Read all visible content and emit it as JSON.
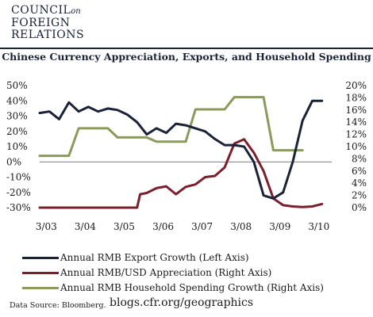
{
  "header": {
    "logo_line1": "COUNCIL",
    "logo_on": "on",
    "logo_line2": "FOREIGN",
    "logo_line3": "RELATIONS"
  },
  "footer": {
    "source": "Data Source: Bloomberg.",
    "site": "blogs.cfr.org/geographics"
  },
  "chart_data": {
    "type": "line",
    "title": "Chinese Currency Appreciation, Exports, and Household Spending",
    "left_axis": {
      "ylim": [
        -30,
        50
      ],
      "ticks": [
        "50%",
        "40%",
        "30%",
        "20%",
        "10%",
        "0%",
        "-10%",
        "-20%",
        "-30%"
      ],
      "values": [
        50,
        40,
        30,
        20,
        10,
        0,
        -10,
        -20,
        -30
      ]
    },
    "right_axis": {
      "ylim": [
        0,
        20
      ],
      "ticks": [
        "20%",
        "18%",
        "16%",
        "14%",
        "12%",
        "10%",
        "8%",
        "6%",
        "4%",
        "2%",
        "0%"
      ],
      "values": [
        20,
        18,
        16,
        14,
        12,
        10,
        8,
        6,
        4,
        2,
        0
      ]
    },
    "x_ticks": [
      {
        "label": "3/03",
        "t": 2003.17
      },
      {
        "label": "3/04",
        "t": 2004.17
      },
      {
        "label": "3/05",
        "t": 2005.17
      },
      {
        "label": "3/06",
        "t": 2006.17
      },
      {
        "label": "3/07",
        "t": 2007.17
      },
      {
        "label": "3/08",
        "t": 2008.17
      },
      {
        "label": "3/09",
        "t": 2009.17
      },
      {
        "label": "3/10",
        "t": 2010.17
      }
    ],
    "xlim": [
      2003.0,
      2010.5
    ],
    "grid": false,
    "zero_line": true,
    "legend_placement": "bottom",
    "series": [
      {
        "name": "Annual RMB Export Growth (Left Axis)",
        "axis": "left",
        "color": "#1a2238",
        "x": [
          2003.0,
          2003.25,
          2003.5,
          2003.75,
          2004.0,
          2004.25,
          2004.5,
          2004.75,
          2005.0,
          2005.25,
          2005.5,
          2005.75,
          2006.0,
          2006.25,
          2006.5,
          2006.75,
          2007.0,
          2007.25,
          2007.5,
          2007.75,
          2008.0,
          2008.25,
          2008.5,
          2008.75,
          2009.0,
          2009.25,
          2009.5,
          2009.75,
          2010.0,
          2010.25
        ],
        "values": [
          32,
          33,
          28,
          39,
          33,
          36,
          33,
          35,
          34,
          31,
          26,
          18,
          22,
          19,
          25,
          24,
          22,
          20,
          15,
          11,
          11,
          10,
          0,
          -22,
          -24,
          -20,
          0,
          27,
          40,
          40
        ]
      },
      {
        "name": "Annual RMB/USD Appreciation (Right Axis)",
        "axis": "right",
        "color": "#7a1f2b",
        "x": [
          2003.0,
          2003.5,
          2004.0,
          2004.5,
          2005.0,
          2005.5,
          2005.58,
          2005.75,
          2006.0,
          2006.25,
          2006.5,
          2006.75,
          2007.0,
          2007.25,
          2007.5,
          2007.75,
          2008.0,
          2008.25,
          2008.5,
          2008.75,
          2009.0,
          2009.25,
          2009.5,
          2009.75,
          2010.0,
          2010.25
        ],
        "values": [
          0,
          0,
          0,
          0,
          0,
          0,
          2.2,
          2.4,
          3.2,
          3.5,
          2.2,
          3.4,
          3.8,
          5.0,
          5.2,
          6.6,
          10.5,
          11.2,
          9.0,
          6.0,
          1.5,
          0.4,
          0.2,
          0.1,
          0.2,
          0.6
        ]
      },
      {
        "name": "Annual RMB Household Spending Growth (Right Axis)",
        "axis": "right",
        "color": "#8a9a5b",
        "x": [
          2003.0,
          2003.25,
          2003.5,
          2003.75,
          2004.0,
          2004.25,
          2004.5,
          2004.75,
          2005.0,
          2005.25,
          2005.5,
          2005.75,
          2006.0,
          2006.25,
          2006.5,
          2006.75,
          2007.0,
          2007.25,
          2007.5,
          2007.75,
          2008.0,
          2008.25,
          2008.5,
          2008.75,
          2009.0,
          2009.25,
          2009.5,
          2009.75
        ],
        "values": [
          8.5,
          8.5,
          8.5,
          8.5,
          13,
          13,
          13,
          13,
          11.5,
          11.5,
          11.5,
          11.5,
          10.8,
          10.8,
          10.8,
          10.8,
          16.1,
          16.1,
          16.1,
          16.1,
          18.1,
          18.1,
          18.1,
          18.1,
          9.4,
          9.4,
          9.4,
          9.4
        ]
      }
    ]
  }
}
